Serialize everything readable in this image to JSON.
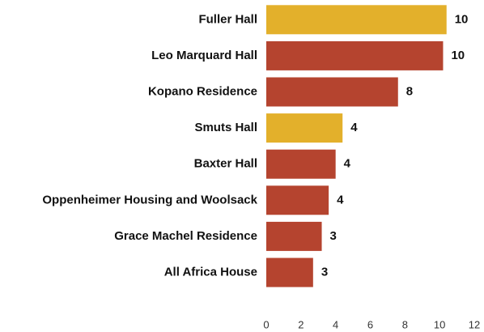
{
  "chart_data": {
    "type": "barh",
    "categories": [
      "Fuller Hall",
      "Leo Marquard Hall",
      "Kopano Residence",
      "Smuts Hall",
      "Baxter Hall",
      "Oppenheimer Housing and Woolsack",
      "Grace Machel Residence",
      "All Africa House"
    ],
    "values": [
      10.4,
      10.2,
      7.6,
      4.4,
      4.0,
      3.6,
      3.2,
      2.7
    ],
    "value_labels": [
      "10",
      "10",
      "8",
      "4",
      "4",
      "4",
      "3",
      "3"
    ],
    "colors": [
      "#e3b02b",
      "#b5442f",
      "#b5442f",
      "#e3b02b",
      "#b5442f",
      "#b5442f",
      "#b5442f",
      "#b5442f"
    ],
    "xlim": [
      0,
      12
    ],
    "xticks": [
      0,
      2,
      4,
      6,
      8,
      10,
      12
    ],
    "grid": false
  }
}
